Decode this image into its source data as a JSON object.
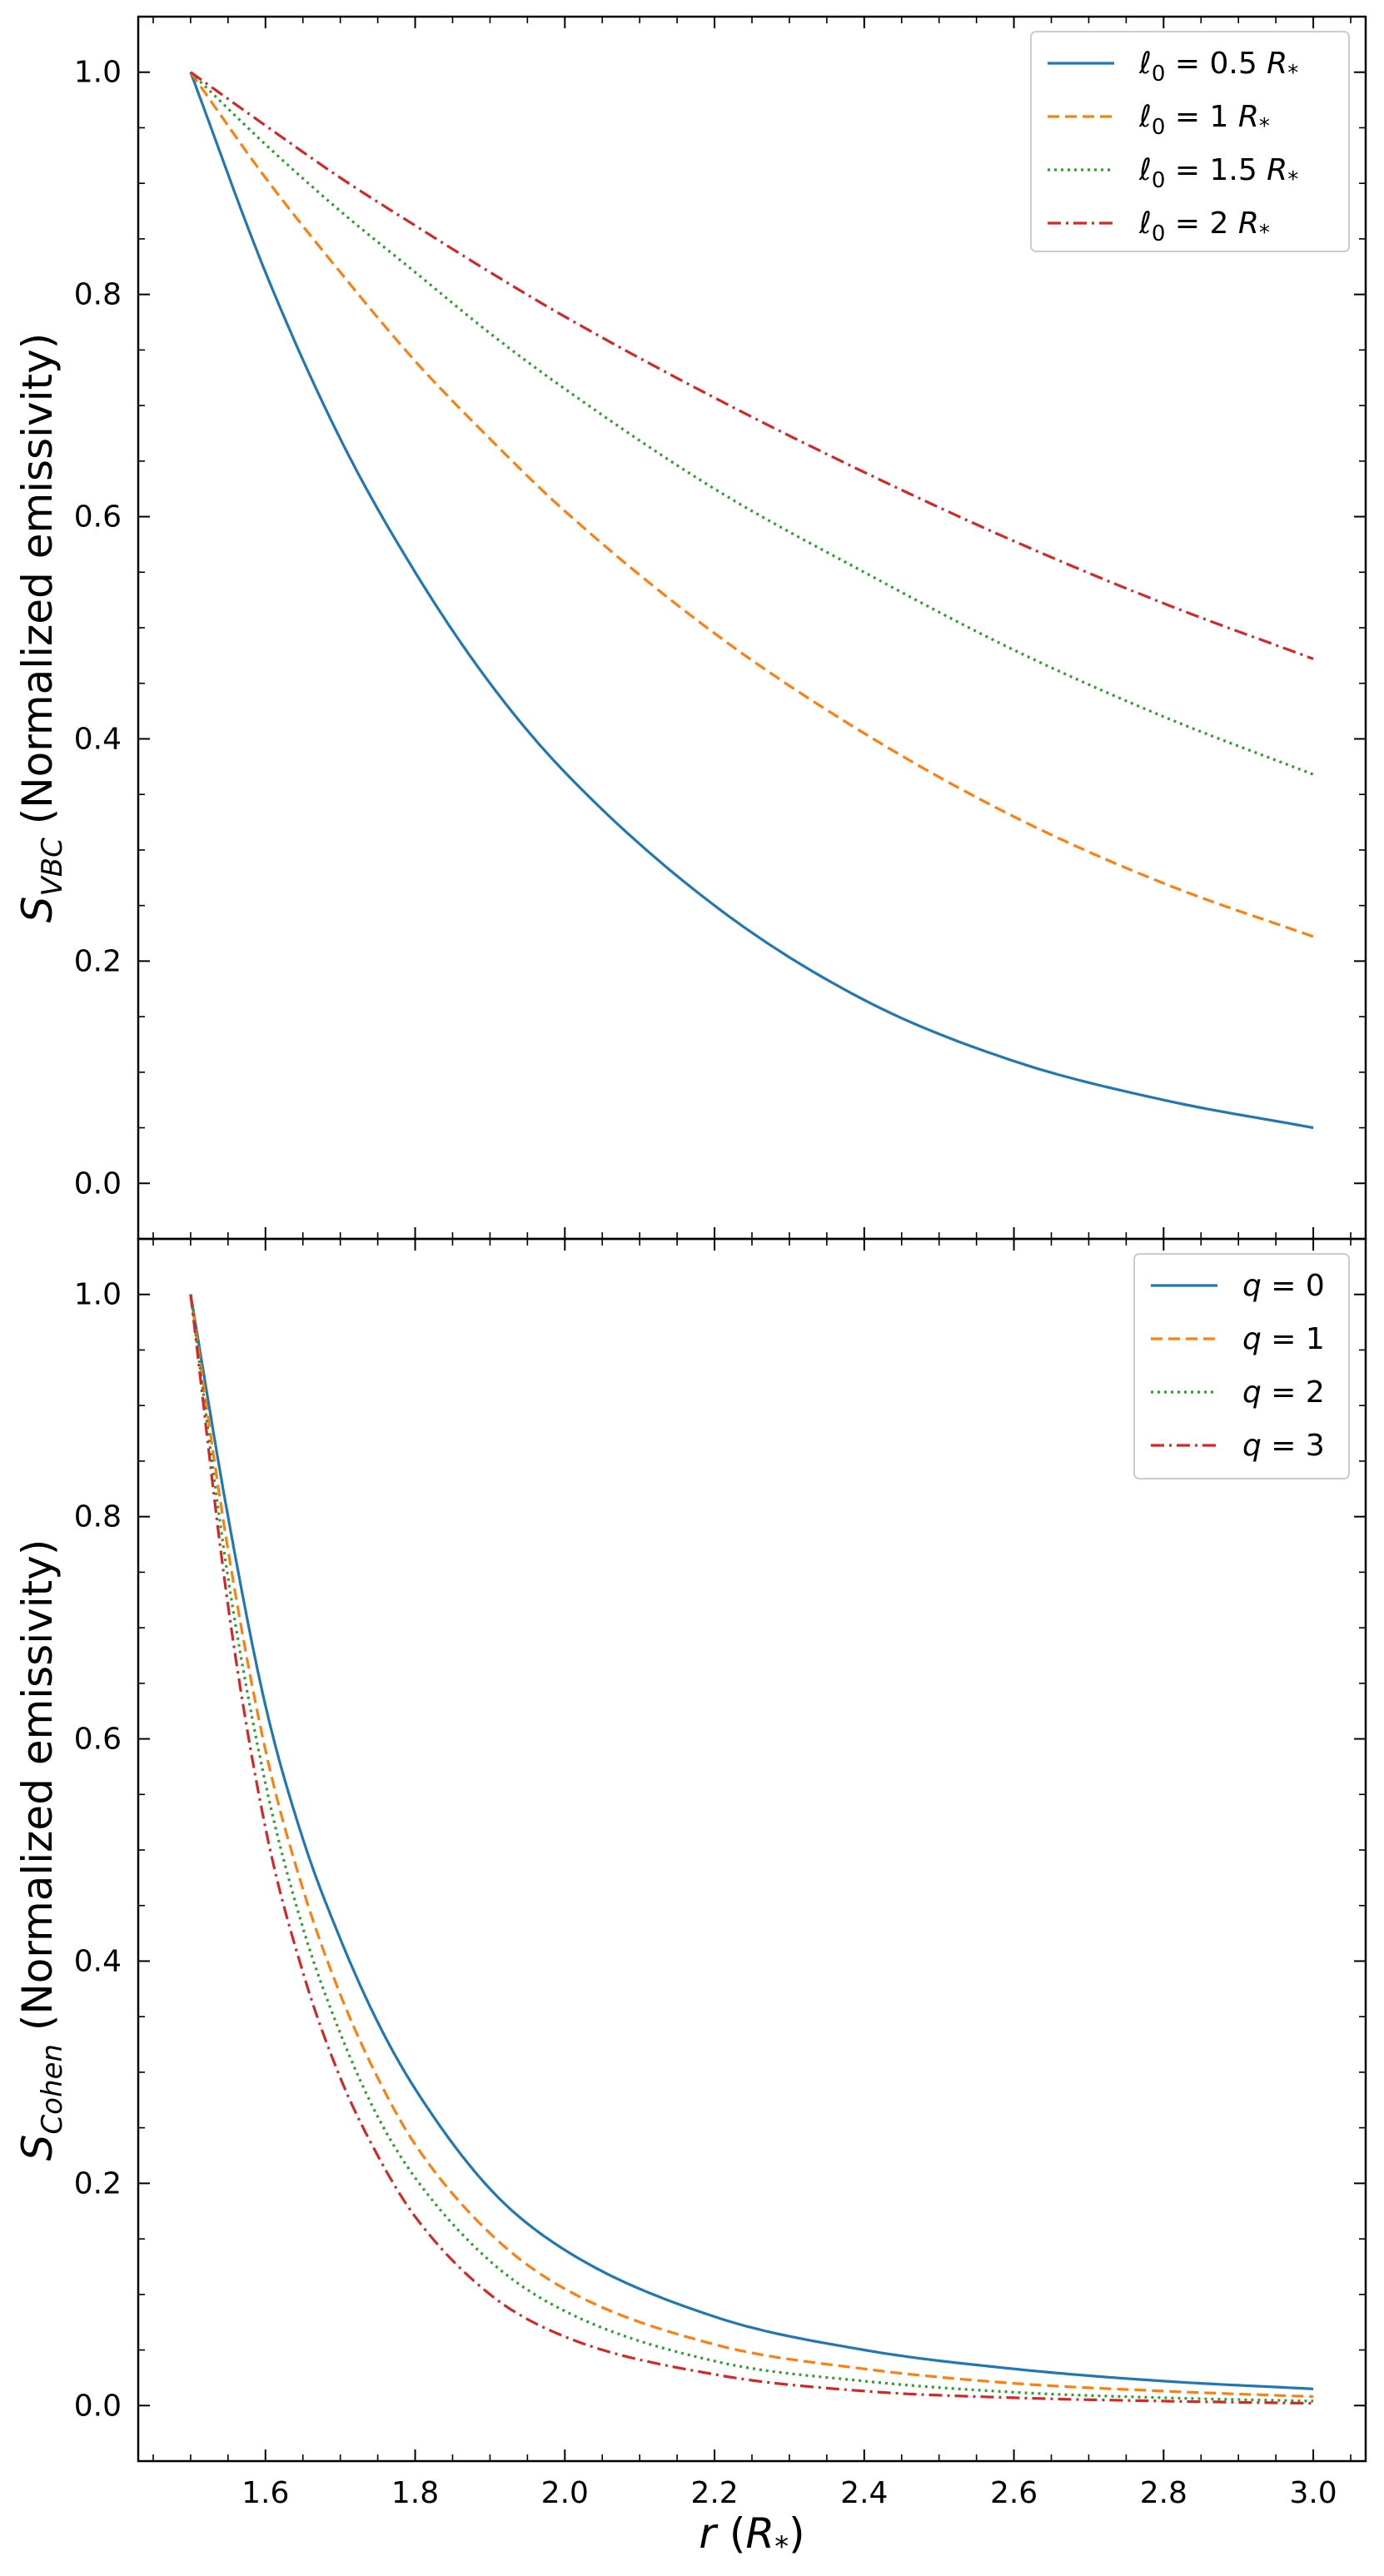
{
  "chart_data": [
    {
      "type": "line",
      "ylabel": "S_VBC (Normalized emissivity)",
      "ylabel_symbol": "S",
      "ylabel_sub": "VBC",
      "ylabel_text": "(Normalized emissivity)",
      "xlabel": "",
      "xlim": [
        1.43,
        3.07
      ],
      "ylim": [
        -0.05,
        1.05
      ],
      "yticks": [
        0.0,
        0.2,
        0.4,
        0.6,
        0.8,
        1.0
      ],
      "ytick_labels": [
        "0.0",
        "0.2",
        "0.4",
        "0.6",
        "0.8",
        "1.0"
      ],
      "legend_position": "top-right",
      "series": [
        {
          "name": "ℓ0 = 0.5 R*",
          "label_sym": "ℓ",
          "label_sub": "0",
          "label_rest": " = 0.5 ",
          "label_unit": "R",
          "label_unit_sub": "*",
          "color": "#1f77b4",
          "dash": "solid",
          "x": [
            1.5,
            1.6,
            1.7,
            1.8,
            1.9,
            2.0,
            2.2,
            2.4,
            2.6,
            2.8,
            3.0
          ],
          "values": [
            1.0,
            0.82,
            0.67,
            0.55,
            0.45,
            0.37,
            0.25,
            0.165,
            0.11,
            0.075,
            0.05
          ]
        },
        {
          "name": "ℓ0 = 1 R*",
          "label_sym": "ℓ",
          "label_sub": "0",
          "label_rest": " = 1 ",
          "label_unit": "R",
          "label_unit_sub": "*",
          "color": "#ff7f0e",
          "dash": "dashed",
          "x": [
            1.5,
            1.6,
            1.7,
            1.8,
            1.9,
            2.0,
            2.2,
            2.4,
            2.6,
            2.8,
            3.0
          ],
          "values": [
            1.0,
            0.905,
            0.82,
            0.74,
            0.67,
            0.605,
            0.495,
            0.405,
            0.33,
            0.27,
            0.222
          ]
        },
        {
          "name": "ℓ0 = 1.5 R*",
          "label_sym": "ℓ",
          "label_sub": "0",
          "label_rest": " = 1.5 ",
          "label_unit": "R",
          "label_unit_sub": "*",
          "color": "#2ca02c",
          "dash": "dotted",
          "x": [
            1.5,
            1.6,
            1.7,
            1.8,
            1.9,
            2.0,
            2.2,
            2.4,
            2.6,
            2.8,
            3.0
          ],
          "values": [
            1.0,
            0.935,
            0.875,
            0.82,
            0.765,
            0.715,
            0.625,
            0.55,
            0.48,
            0.42,
            0.368
          ]
        },
        {
          "name": "ℓ0 = 2 R*",
          "label_sym": "ℓ",
          "label_sub": "0",
          "label_rest": " = 2 ",
          "label_unit": "R",
          "label_unit_sub": "*",
          "color": "#d62728",
          "dash": "dashdot",
          "x": [
            1.5,
            1.6,
            1.7,
            1.8,
            1.9,
            2.0,
            2.2,
            2.4,
            2.6,
            2.8,
            3.0
          ],
          "values": [
            1.0,
            0.952,
            0.905,
            0.862,
            0.82,
            0.78,
            0.707,
            0.64,
            0.578,
            0.522,
            0.472
          ]
        }
      ]
    },
    {
      "type": "line",
      "ylabel": "S_Cohen (Normalized emissivity)",
      "ylabel_symbol": "S",
      "ylabel_sub": "Cohen",
      "ylabel_text": "(Normalized emissivity)",
      "xlabel": "r (R*)",
      "xlabel_sym": "r",
      "xlabel_open": " (",
      "xlabel_unit": "R",
      "xlabel_unit_sub": "*",
      "xlabel_close": ")",
      "xlim": [
        1.43,
        3.07
      ],
      "ylim": [
        -0.05,
        1.05
      ],
      "xticks": [
        1.6,
        1.8,
        2.0,
        2.2,
        2.4,
        2.6,
        2.8,
        3.0
      ],
      "xtick_labels": [
        "1.6",
        "1.8",
        "2.0",
        "2.2",
        "2.4",
        "2.6",
        "2.8",
        "3.0"
      ],
      "yticks": [
        0.0,
        0.2,
        0.4,
        0.6,
        0.8,
        1.0
      ],
      "ytick_labels": [
        "0.0",
        "0.2",
        "0.4",
        "0.6",
        "0.8",
        "1.0"
      ],
      "legend_position": "top-right",
      "series": [
        {
          "name": "q = 0",
          "label_sym": "q",
          "label_rest": " = 0",
          "color": "#1f77b4",
          "dash": "solid",
          "x": [
            1.5,
            1.55,
            1.6,
            1.65,
            1.7,
            1.75,
            1.8,
            1.9,
            2.0,
            2.2,
            2.4,
            2.6,
            2.8,
            3.0
          ],
          "values": [
            1.0,
            0.8,
            0.63,
            0.51,
            0.42,
            0.345,
            0.285,
            0.195,
            0.14,
            0.08,
            0.05,
            0.033,
            0.022,
            0.015
          ]
        },
        {
          "name": "q = 1",
          "label_sym": "q",
          "label_rest": " = 1",
          "color": "#ff7f0e",
          "dash": "dashed",
          "x": [
            1.5,
            1.55,
            1.6,
            1.65,
            1.7,
            1.75,
            1.8,
            1.9,
            2.0,
            2.2,
            2.4,
            2.6,
            2.8,
            3.0
          ],
          "values": [
            1.0,
            0.77,
            0.59,
            0.465,
            0.37,
            0.295,
            0.235,
            0.155,
            0.105,
            0.055,
            0.033,
            0.02,
            0.013,
            0.008
          ]
        },
        {
          "name": "q = 2",
          "label_sym": "q",
          "label_rest": " = 2",
          "color": "#2ca02c",
          "dash": "dotted",
          "x": [
            1.5,
            1.55,
            1.6,
            1.65,
            1.7,
            1.75,
            1.8,
            1.9,
            2.0,
            2.2,
            2.4,
            2.6,
            2.8,
            3.0
          ],
          "values": [
            1.0,
            0.745,
            0.56,
            0.43,
            0.335,
            0.26,
            0.205,
            0.13,
            0.085,
            0.04,
            0.022,
            0.012,
            0.007,
            0.004
          ]
        },
        {
          "name": "q = 3",
          "label_sym": "q",
          "label_rest": " = 3",
          "color": "#d62728",
          "dash": "dashdot",
          "x": [
            1.5,
            1.55,
            1.6,
            1.65,
            1.7,
            1.75,
            1.8,
            1.9,
            2.0,
            2.2,
            2.4,
            2.6,
            2.8,
            3.0
          ],
          "values": [
            1.0,
            0.72,
            0.52,
            0.39,
            0.295,
            0.225,
            0.17,
            0.1,
            0.062,
            0.028,
            0.013,
            0.007,
            0.004,
            0.002
          ]
        }
      ]
    }
  ]
}
